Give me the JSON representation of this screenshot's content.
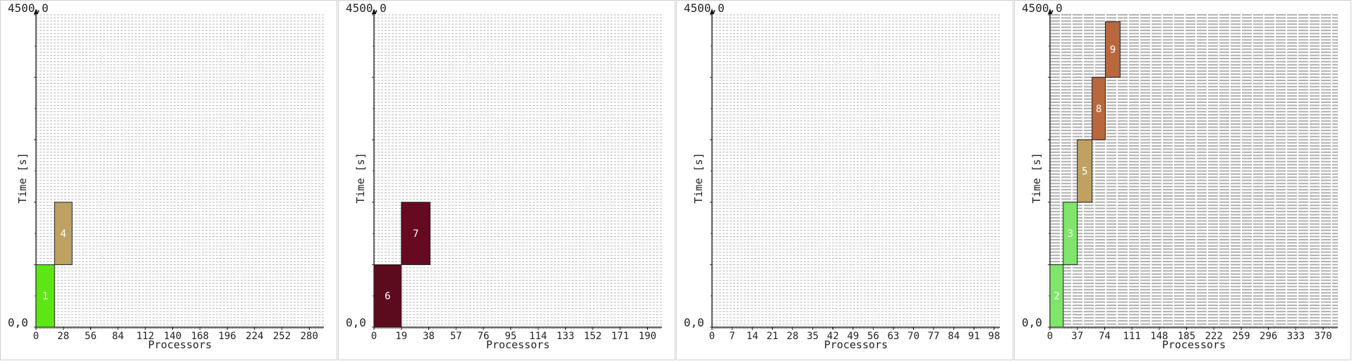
{
  "chart_data": [
    {
      "type": "gantt",
      "xlabel": "Processors",
      "ylabel": "Time [s]",
      "ymax_label": "4500,0",
      "ymin_label": "0,0",
      "ylim": [
        0,
        4500
      ],
      "xlim": [
        0,
        295
      ],
      "grid": "dense",
      "xticks": [
        "0",
        "28",
        "56",
        "84",
        "112",
        "140",
        "168",
        "196",
        "224",
        "252",
        "280"
      ],
      "xtick_values": [
        0,
        28,
        56,
        84,
        112,
        140,
        168,
        196,
        224,
        252,
        280
      ],
      "blocks": [
        {
          "label": "1",
          "x0": 0,
          "x1": 19,
          "y0": 0,
          "y1": 900,
          "color": "#5ee614"
        },
        {
          "label": "4",
          "x0": 19,
          "x1": 37,
          "y0": 900,
          "y1": 1800,
          "color": "#bfa262"
        }
      ]
    },
    {
      "type": "gantt",
      "xlabel": "Processors",
      "ylabel": "Time [s]",
      "ymax_label": "4500,0",
      "ymin_label": "0,0",
      "ylim": [
        0,
        4500
      ],
      "xlim": [
        0,
        200
      ],
      "grid": "dense",
      "xticks": [
        "0",
        "19",
        "38",
        "57",
        "76",
        "95",
        "114",
        "133",
        "152",
        "171",
        "190"
      ],
      "xtick_values": [
        0,
        19,
        38,
        57,
        76,
        95,
        114,
        133,
        152,
        171,
        190
      ],
      "blocks": [
        {
          "label": "6",
          "x0": 0,
          "x1": 19,
          "y0": 0,
          "y1": 900,
          "color": "#5c0a1e"
        },
        {
          "label": "7",
          "x0": 19,
          "x1": 39,
          "y0": 900,
          "y1": 1800,
          "color": "#660a22"
        }
      ]
    },
    {
      "type": "gantt",
      "xlabel": "Processors",
      "ylabel": "Time [s]",
      "ymax_label": "4500,0",
      "ymin_label": "0,0",
      "ylim": [
        0,
        4500
      ],
      "xlim": [
        0,
        100
      ],
      "grid": "dense",
      "xticks": [
        "0",
        "7",
        "14",
        "21",
        "28",
        "35",
        "42",
        "49",
        "56",
        "63",
        "70",
        "77",
        "84",
        "91",
        "98"
      ],
      "xtick_values": [
        0,
        7,
        14,
        21,
        28,
        35,
        42,
        49,
        56,
        63,
        70,
        77,
        84,
        91,
        98
      ],
      "blocks": []
    },
    {
      "type": "gantt",
      "xlabel": "Processors",
      "ylabel": "Time [s]",
      "ymax_label": "4500,0",
      "ymin_label": "0,0",
      "ylim": [
        0,
        4500
      ],
      "xlim": [
        0,
        390
      ],
      "grid": "dense",
      "xticks": [
        "0",
        "37",
        "74",
        "111",
        "148",
        "185",
        "222",
        "259",
        "296",
        "333",
        "370"
      ],
      "xtick_values": [
        0,
        37,
        74,
        111,
        148,
        185,
        222,
        259,
        296,
        333,
        370
      ],
      "blocks": [
        {
          "label": "2",
          "x0": 0,
          "x1": 18,
          "y0": 0,
          "y1": 900,
          "color": "#80e56b"
        },
        {
          "label": "3",
          "x0": 18,
          "x1": 37,
          "y0": 900,
          "y1": 1800,
          "color": "#80e56b"
        },
        {
          "label": "5",
          "x0": 37,
          "x1": 57,
          "y0": 1800,
          "y1": 2700,
          "color": "#bfa262"
        },
        {
          "label": "8",
          "x0": 57,
          "x1": 75,
          "y0": 2700,
          "y1": 3600,
          "color": "#b8683c"
        },
        {
          "label": "9",
          "x0": 75,
          "x1": 95,
          "y0": 3600,
          "y1": 4400,
          "color": "#b8683c"
        }
      ]
    }
  ]
}
